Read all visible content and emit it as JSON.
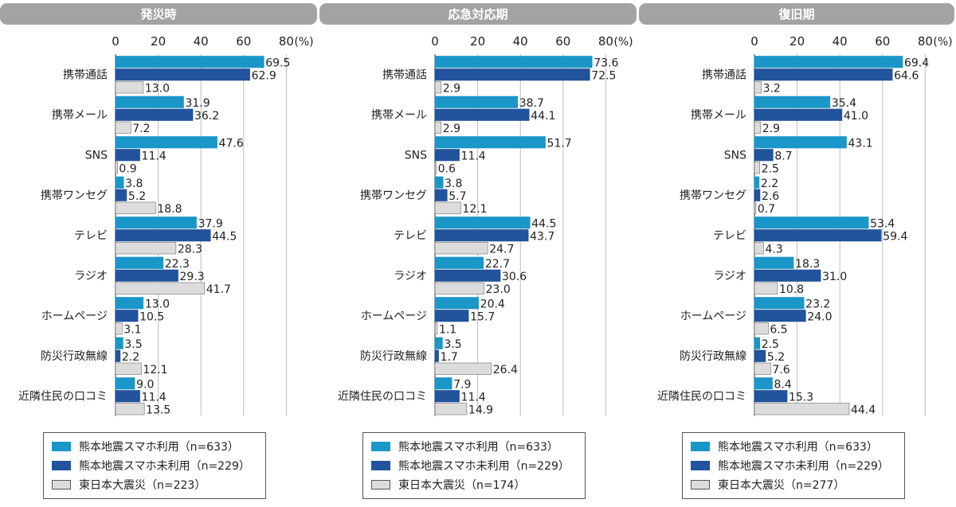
{
  "chart_data": [
    {
      "type": "bar",
      "title": "発災時",
      "categories": [
        "携帯通話",
        "携帯メール",
        "SNS",
        "携帯ワンセグ",
        "テレビ",
        "ラジオ",
        "ホームページ",
        "防災行政無線",
        "近隣住民の口コミ"
      ],
      "series": [
        {
          "name": "熊本地震スマホ利用（n=633）",
          "values": [
            69.5,
            31.9,
            47.6,
            3.8,
            37.9,
            22.3,
            13.0,
            3.5,
            9.0
          ]
        },
        {
          "name": "熊本地震スマホ未利用（n=229）",
          "values": [
            62.9,
            36.2,
            11.4,
            5.2,
            44.5,
            29.3,
            10.5,
            2.2,
            11.4
          ]
        },
        {
          "name": "東日本大震災（n=223）",
          "values": [
            13.0,
            7.2,
            0.9,
            18.8,
            28.3,
            41.7,
            3.1,
            12.1,
            13.5
          ]
        }
      ],
      "xlim": [
        0,
        80
      ],
      "ticks": [
        "0",
        "20",
        "40",
        "60",
        "80"
      ],
      "unit": "(%)",
      "grid": true,
      "legend_position": "bottom"
    },
    {
      "type": "bar",
      "title": "応急対応期",
      "categories": [
        "携帯通話",
        "携帯メール",
        "SNS",
        "携帯ワンセグ",
        "テレビ",
        "ラジオ",
        "ホームページ",
        "防災行政無線",
        "近隣住民の口コミ"
      ],
      "series": [
        {
          "name": "熊本地震スマホ利用（n=633）",
          "values": [
            73.6,
            38.7,
            51.7,
            3.8,
            44.5,
            22.7,
            20.4,
            3.5,
            7.9
          ]
        },
        {
          "name": "熊本地震スマホ未利用（n=229）",
          "values": [
            72.5,
            44.1,
            11.4,
            5.7,
            43.7,
            30.6,
            15.7,
            1.7,
            11.4
          ]
        },
        {
          "name": "東日本大震災（n=174）",
          "values": [
            2.9,
            2.9,
            0.6,
            12.1,
            24.7,
            23.0,
            1.1,
            26.4,
            14.9
          ]
        }
      ],
      "xlim": [
        0,
        80
      ],
      "ticks": [
        "0",
        "20",
        "40",
        "60",
        "80"
      ],
      "unit": "(%)",
      "grid": true,
      "legend_position": "bottom"
    },
    {
      "type": "bar",
      "title": "復旧期",
      "categories": [
        "携帯通話",
        "携帯メール",
        "SNS",
        "携帯ワンセグ",
        "テレビ",
        "ラジオ",
        "ホームページ",
        "防災行政無線",
        "近隣住民の口コミ"
      ],
      "series": [
        {
          "name": "熊本地震スマホ利用（n=633）",
          "values": [
            69.4,
            35.4,
            43.1,
            2.2,
            53.4,
            18.3,
            23.2,
            2.5,
            8.4
          ]
        },
        {
          "name": "熊本地震スマホ未利用（n=229）",
          "values": [
            64.6,
            41.0,
            8.7,
            2.6,
            59.4,
            31.0,
            24.0,
            5.2,
            15.3
          ]
        },
        {
          "name": "東日本大震災（n=277）",
          "values": [
            3.2,
            2.9,
            2.5,
            0.7,
            4.3,
            10.8,
            6.5,
            7.6,
            44.4
          ]
        }
      ],
      "xlim": [
        0,
        80
      ],
      "ticks": [
        "0",
        "20",
        "40",
        "60",
        "80"
      ],
      "unit": "(%)",
      "grid": true,
      "legend_position": "bottom"
    }
  ],
  "colors": {
    "series": [
      "#1a96c8",
      "#22549e",
      "#dcdcdc"
    ],
    "header": "#a3a3a3",
    "grid": "#bdbdbd"
  }
}
